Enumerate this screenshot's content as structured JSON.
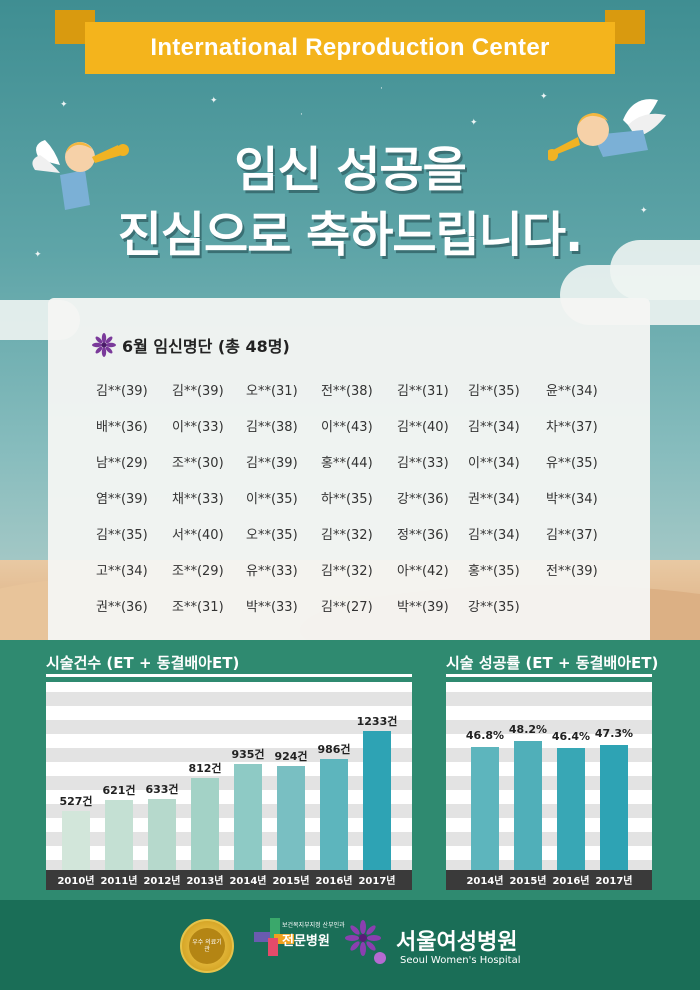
{
  "banner": "International Reproduction Center",
  "headline": {
    "line1": "임신 성공을",
    "line2": "진심으로 축하드립니다."
  },
  "list": {
    "title": "6월 임신명단 (총 48명)",
    "rows": [
      [
        "김**(39)",
        "김**(39)",
        "오**(31)",
        "전**(38)",
        "김**(31)",
        "김**(35)",
        "윤**(34)"
      ],
      [
        "배**(36)",
        "이**(33)",
        "김**(38)",
        "이**(43)",
        "김**(40)",
        "김**(34)",
        "차**(37)"
      ],
      [
        "남**(29)",
        "조**(30)",
        "김**(39)",
        "홍**(44)",
        "김**(33)",
        "이**(34)",
        "유**(35)"
      ],
      [
        "염**(39)",
        "채**(33)",
        "이**(35)",
        "하**(35)",
        "강**(36)",
        "권**(34)",
        "박**(34)"
      ],
      [
        "김**(35)",
        "서**(40)",
        "오**(35)",
        "김**(32)",
        "정**(36)",
        "김**(34)",
        "김**(37)"
      ],
      [
        "고**(34)",
        "조**(29)",
        "유**(33)",
        "김**(32)",
        "아**(42)",
        "홍**(35)",
        "전**(39)"
      ],
      [
        "권**(36)",
        "조**(31)",
        "박**(33)",
        "김**(27)",
        "박**(39)",
        "강**(35)"
      ]
    ]
  },
  "chart_data": [
    {
      "type": "bar",
      "title": "시술건수 (ET + 동결배아ET)",
      "categories": [
        "2010년",
        "2011년",
        "2012년",
        "2013년",
        "2014년",
        "2015년",
        "2016년",
        "2017년"
      ],
      "values": [
        527,
        621,
        633,
        812,
        935,
        924,
        986,
        1233
      ],
      "labels": [
        "527건",
        "621건",
        "633건",
        "812건",
        "935건",
        "924건",
        "986건",
        "1233건"
      ],
      "ylim": [
        0,
        1400
      ]
    },
    {
      "type": "bar",
      "title": "시술 성공률 (ET + 동결배아ET)",
      "categories": [
        "2014년",
        "2015년",
        "2016년",
        "2017년"
      ],
      "values": [
        46.8,
        48.2,
        46.4,
        47.3
      ],
      "labels": [
        "46.8%",
        "48.2%",
        "46.4%",
        "47.3%"
      ],
      "ylim": [
        0,
        54
      ]
    }
  ],
  "footer": {
    "badge_text": "우수 의료기관",
    "specialist": {
      "small": "보건복지부지정 산부인과",
      "main": "전문병원"
    },
    "hospital": {
      "korean": "서울여성병원",
      "english": "Seoul Women's Hospital"
    }
  },
  "colors": {
    "gold": "#f4b41c",
    "teal_dark": "#2f8a70",
    "footer": "#1a6e57",
    "purple": "#6a2a8e"
  }
}
